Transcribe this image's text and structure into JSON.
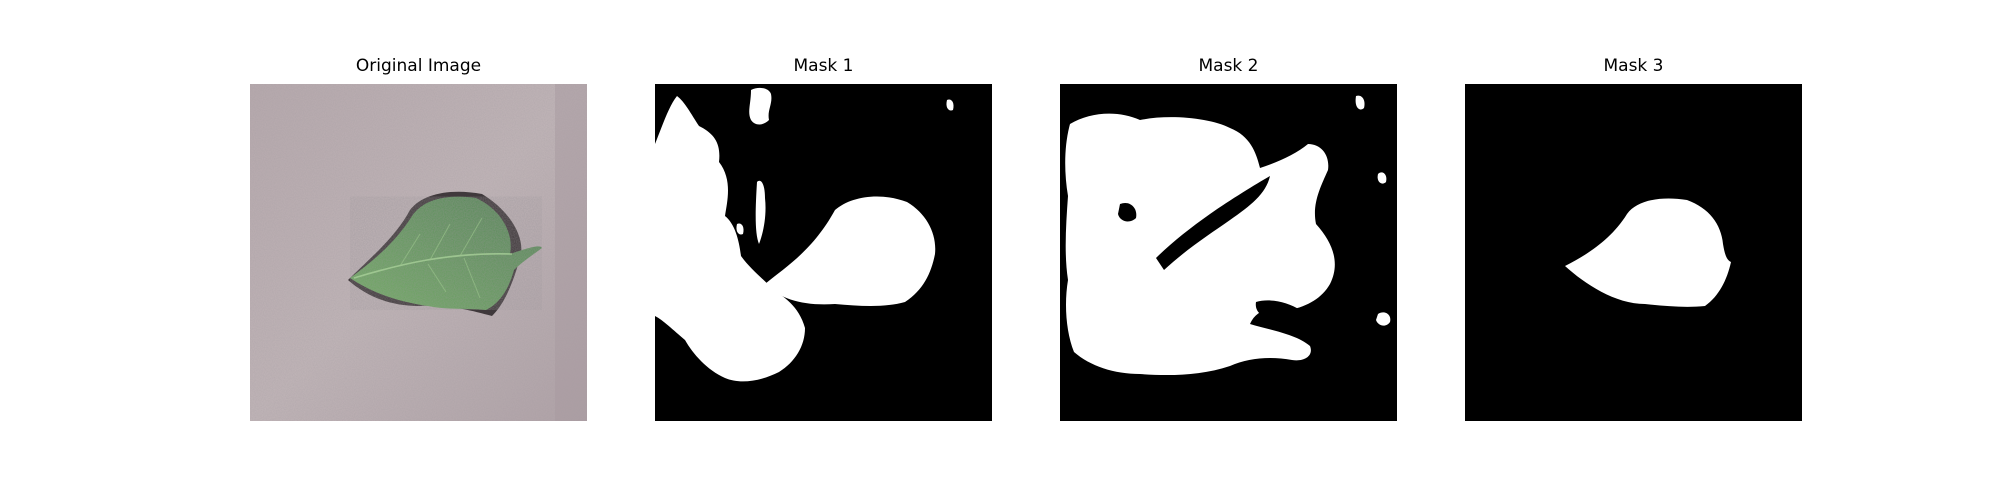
{
  "figure": {
    "panels": [
      {
        "title": "Original Image",
        "content": "leaf-photo"
      },
      {
        "title": "Mask 1",
        "content": "mask"
      },
      {
        "title": "Mask 2",
        "content": "mask"
      },
      {
        "title": "Mask 3",
        "content": "mask"
      }
    ]
  },
  "colors": {
    "background": "#ffffff",
    "mask_background": "#000000",
    "mask_foreground": "#ffffff",
    "photo_background": "#b7a9ad",
    "leaf_green": "#5f9a5a"
  }
}
